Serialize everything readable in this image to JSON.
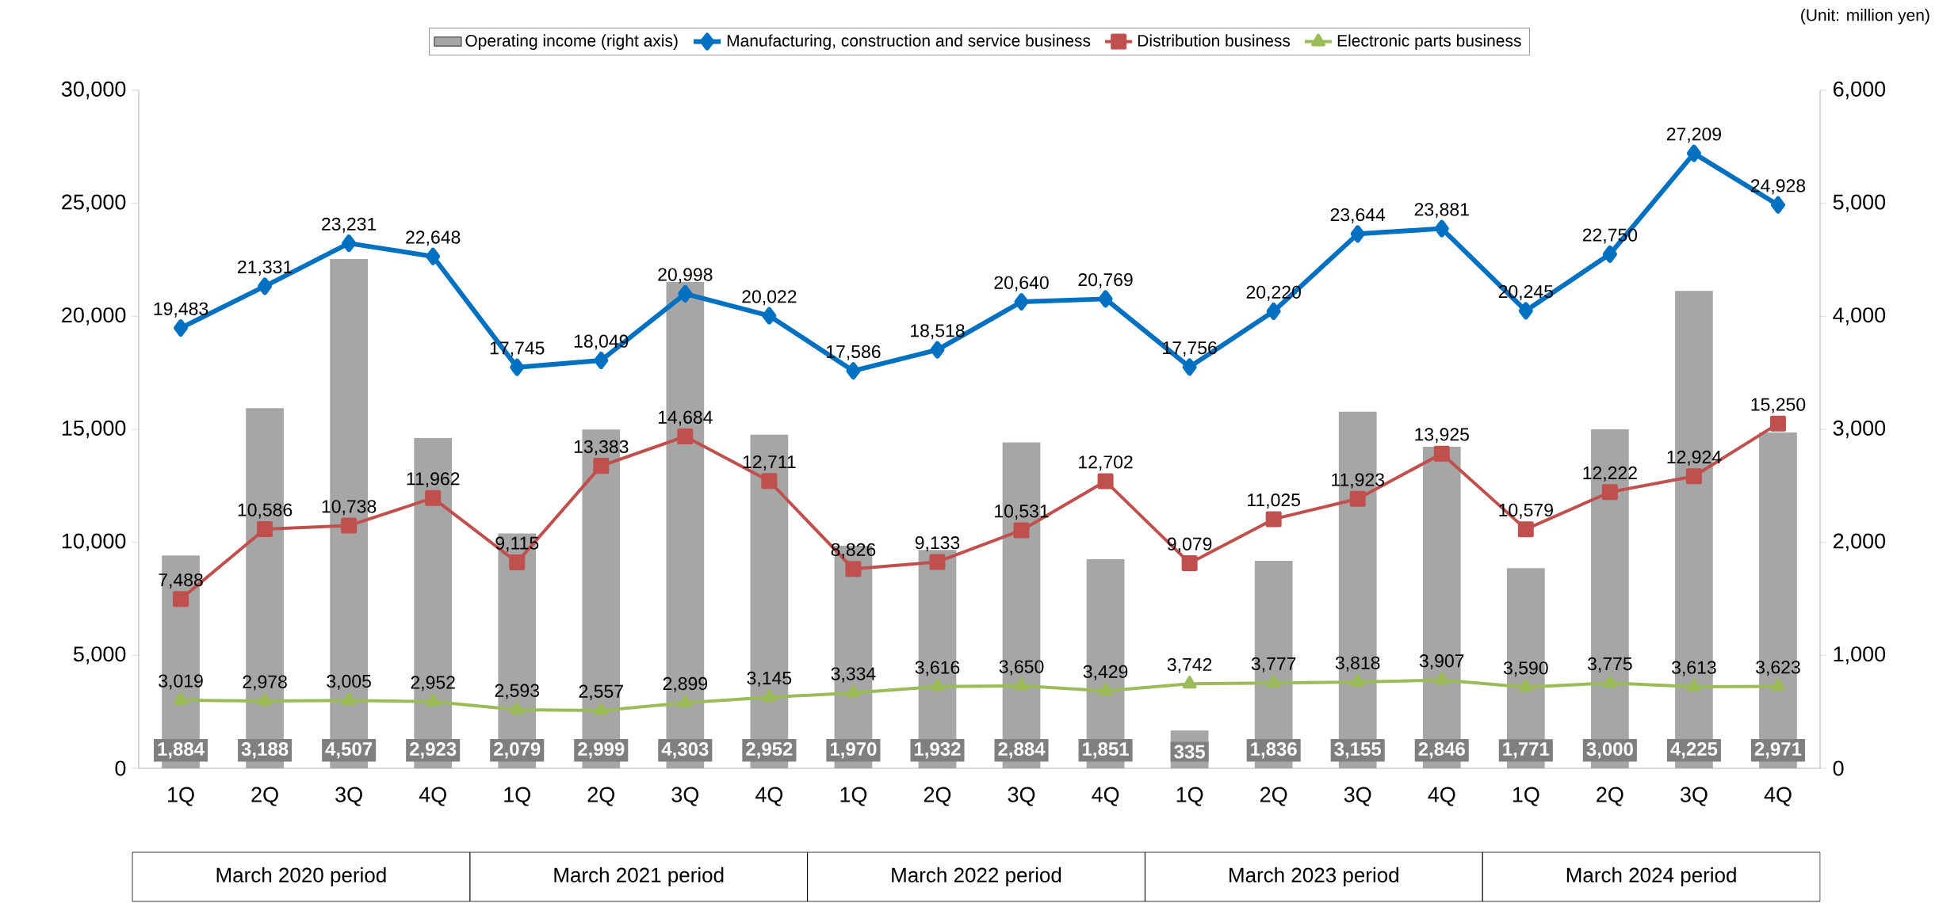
{
  "chart_data": {
    "type": "line",
    "categories": [
      "1Q",
      "2Q",
      "3Q",
      "4Q",
      "1Q",
      "2Q",
      "3Q",
      "4Q",
      "1Q",
      "2Q",
      "3Q",
      "4Q",
      "1Q",
      "2Q",
      "3Q",
      "4Q",
      "1Q",
      "2Q",
      "3Q",
      "4Q"
    ],
    "ylim": [
      0,
      30000
    ],
    "yticks": [
      0,
      {
        "value": 5000,
        "label": "5,000"
      },
      {
        "value": 10000,
        "label": "10,000"
      },
      {
        "value": 15000,
        "label": "15,000"
      },
      {
        "value": 20000,
        "label": "20,000"
      },
      {
        "value": 25000,
        "label": "25,000"
      },
      {
        "value": 30000,
        "label": "30,000"
      }
    ],
    "y2lim": [
      0,
      6000
    ],
    "y2ticks": [
      0,
      {
        "value": 1000,
        "label": "1,000"
      },
      {
        "value": 2000,
        "label": "2,000"
      },
      {
        "value": 3000,
        "label": "3,000"
      },
      {
        "value": 4000,
        "label": "4,000"
      },
      {
        "value": 5000,
        "label": "5,000"
      },
      {
        "value": 6000,
        "label": "6,000"
      }
    ],
    "legend": "top",
    "annotations": [
      "(Unit: million yen)",
      "March 2020 period",
      "March 2021 period",
      "March 2022 period",
      "March 2023 period",
      "March 2024 period"
    ],
    "series": [
      {
        "name": "Operating income (right axis)",
        "type": "bar",
        "axis": "y2",
        "color": "#a6a6a6",
        "values": [
          1884,
          3188,
          4507,
          2923,
          2079,
          2999,
          4303,
          2952,
          1970,
          1932,
          2884,
          1851,
          335,
          1836,
          3155,
          2846,
          1771,
          3000,
          4225,
          2971
        ],
        "value_labels": [
          "1,884",
          "3,188",
          "4,507",
          "2,923",
          "2,079",
          "2,999",
          "4,303",
          "2,952",
          "1,970",
          "1,932",
          "2,884",
          "1,851",
          "335",
          "1,836",
          "3,155",
          "2,846",
          "1,771",
          "3,000",
          "4,225",
          "2,971"
        ]
      },
      {
        "name": "Manufacturing, construction and service business",
        "color": "#0070c0",
        "marker": "diamond",
        "values": [
          19483,
          21331,
          23231,
          22648,
          17745,
          18049,
          20998,
          20022,
          17586,
          18518,
          20640,
          20769,
          17756,
          20220,
          23644,
          23881,
          20245,
          22750,
          27209,
          24928
        ],
        "value_labels": [
          "19,483",
          "21,331",
          "23,231",
          "22,648",
          "17,745",
          "18,049",
          "20,998",
          "20,022",
          "17,586",
          "18,518",
          "20,640",
          "20,769",
          "17,756",
          "20,220",
          "23,644",
          "23,881",
          "20,245",
          "22,750",
          "27,209",
          "24,928"
        ]
      },
      {
        "name": "Distribution business",
        "color": "#c0504d",
        "marker": "square",
        "values": [
          7488,
          10586,
          10738,
          11962,
          9115,
          13383,
          14684,
          12711,
          8826,
          9133,
          10531,
          12702,
          9079,
          11025,
          11923,
          13925,
          10579,
          12222,
          12924,
          15250
        ],
        "value_labels": [
          "7,488",
          "10,586",
          "10,738",
          "11,962",
          "9,115",
          "13,383",
          "14,684",
          "12,711",
          "8,826",
          "9,133",
          "10,531",
          "12,702",
          "9,079",
          "11,025",
          "11,923",
          "13,925",
          "10,579",
          "12,222",
          "12,924",
          "15,250"
        ]
      },
      {
        "name": "Electronic parts business",
        "color": "#9bbb59",
        "marker": "triangle",
        "values": [
          3019,
          2978,
          3005,
          2952,
          2593,
          2557,
          2899,
          3145,
          3334,
          3616,
          3650,
          3429,
          3742,
          3777,
          3818,
          3907,
          3590,
          3775,
          3613,
          3623
        ],
        "value_labels": [
          "3,019",
          "2,978",
          "3,005",
          "2,952",
          "2,593",
          "2,557",
          "2,899",
          "3,145",
          "3,334",
          "3,616",
          "3,650",
          "3,429",
          "3,742",
          "3,777",
          "3,818",
          "3,907",
          "3,590",
          "3,775",
          "3,613",
          "3,623"
        ]
      }
    ]
  }
}
